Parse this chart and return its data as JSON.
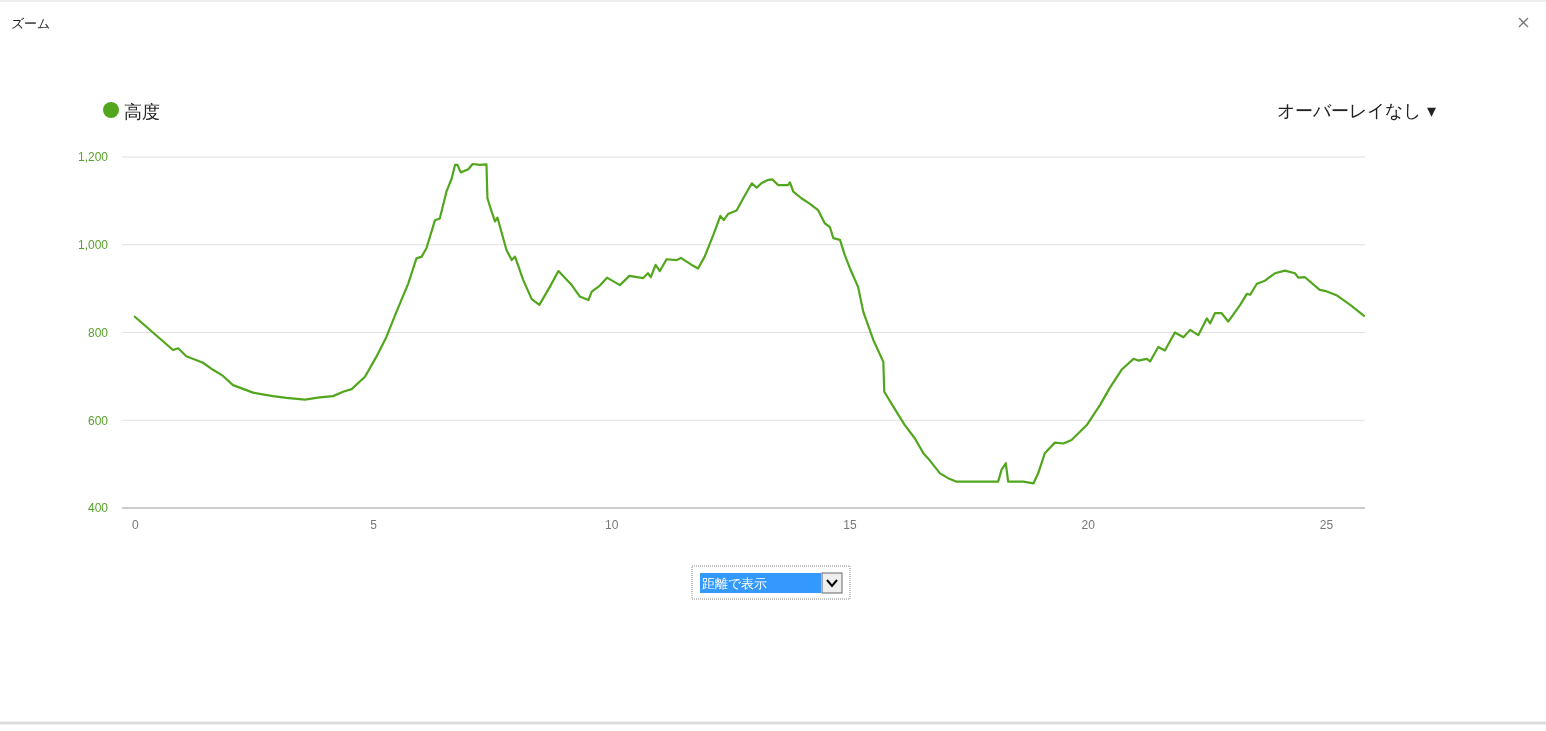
{
  "chart_data": {
    "type": "line",
    "title": "ズーム",
    "annotations": [
      "オーバーレイなし ▾",
      "距離で表示"
    ],
    "legend": "top left",
    "grid": "y",
    "xlim": [
      -0.27,
      25.82
    ],
    "xticks": [
      0,
      5,
      10,
      15,
      20,
      25
    ],
    "ylim": [
      400,
      1200
    ],
    "yticks": [
      400,
      600,
      800,
      {
        "value": 1000,
        "label": "1,000"
      },
      {
        "value": 1200,
        "label": "1,200"
      }
    ],
    "series": [
      {
        "name": "高度",
        "color": "#52a61e",
        "x": [
          0,
          0.56,
          0.8,
          0.91,
          1.08,
          1.43,
          1.64,
          1.85,
          2.06,
          2.48,
          2.9,
          3.18,
          3.57,
          3.88,
          4.16,
          4.37,
          4.55,
          4.83,
          5.07,
          5.28,
          5.49,
          5.74,
          5.91,
          6.02,
          6.12,
          6.3,
          6.4,
          6.54,
          6.65,
          6.72,
          6.77,
          6.84,
          7,
          7.09,
          7.24,
          7.38,
          7.4,
          7.49,
          7.56,
          7.61,
          7.8,
          7.91,
          7.98,
          8.15,
          8.33,
          8.49,
          8.71,
          8.89,
          9.17,
          9.34,
          9.52,
          9.59,
          9.76,
          9.91,
          10.18,
          10.38,
          10.67,
          10.77,
          10.83,
          10.93,
          11.02,
          11.16,
          11.37,
          11.46,
          11.72,
          11.82,
          11.96,
          12.14,
          12.29,
          12.36,
          12.45,
          12.63,
          12.77,
          12.95,
          13.05,
          13.16,
          13.3,
          13.38,
          13.5,
          13.71,
          13.75,
          13.82,
          13.99,
          14.17,
          14.34,
          14.48,
          14.59,
          14.66,
          14.8,
          14.9,
          15.01,
          15.18,
          15.29,
          15.5,
          15.71,
          15.73,
          15.92,
          16.16,
          16.37,
          16.55,
          16.65,
          16.9,
          17.07,
          17.25,
          17.6,
          18.12,
          18.19,
          18.28,
          18.33,
          18.65,
          18.86,
          18.96,
          19.1,
          19.31,
          19.49,
          19.66,
          19.98,
          20.26,
          20.47,
          20.71,
          20.96,
          21.06,
          21.24,
          21.31,
          21.48,
          21.62,
          21.83,
          22.01,
          22.15,
          22.32,
          22.5,
          22.57,
          22.67,
          22.81,
          22.95,
          23.2,
          23.34,
          23.41,
          23.55,
          23.72,
          23.93,
          24.14,
          24.35,
          24.42,
          24.56,
          24.87,
          24.98,
          25.22,
          25.51,
          25.8
        ],
        "values": [
          836,
          783,
          760,
          764,
          746,
          731,
          715,
          701,
          680,
          663,
          655,
          651,
          647,
          652,
          655,
          665,
          671,
          699,
          745,
          790,
          847,
          912,
          969,
          973,
          992,
          1056,
          1060,
          1121,
          1151,
          1182,
          1182,
          1165,
          1172,
          1184,
          1182,
          1183,
          1106,
          1075,
          1053,
          1062,
          988,
          965,
          973,
          920,
          876,
          863,
          904,
          940,
          908,
          882,
          874,
          893,
          907,
          925,
          908,
          929,
          924,
          935,
          926,
          954,
          940,
          967,
          965,
          970,
          952,
          946,
          973,
          1022,
          1066,
          1056,
          1070,
          1078,
          1106,
          1140,
          1130,
          1141,
          1148,
          1149,
          1136,
          1136,
          1142,
          1121,
          1106,
          1093,
          1079,
          1049,
          1040,
          1015,
          1011,
          977,
          946,
          904,
          847,
          783,
          733,
          665,
          631,
          589,
          559,
          525,
          513,
          479,
          468,
          460,
          460,
          460,
          487,
          502,
          460,
          460,
          456,
          479,
          525,
          549,
          547,
          555,
          589,
          635,
          675,
          715,
          740,
          736,
          740,
          734,
          767,
          759,
          800,
          789,
          806,
          794,
          832,
          821,
          844,
          844,
          825,
          863,
          888,
          886,
          911,
          918,
          935,
          941,
          935,
          925,
          926,
          897,
          895,
          885,
          863,
          838
        ]
      }
    ]
  }
}
